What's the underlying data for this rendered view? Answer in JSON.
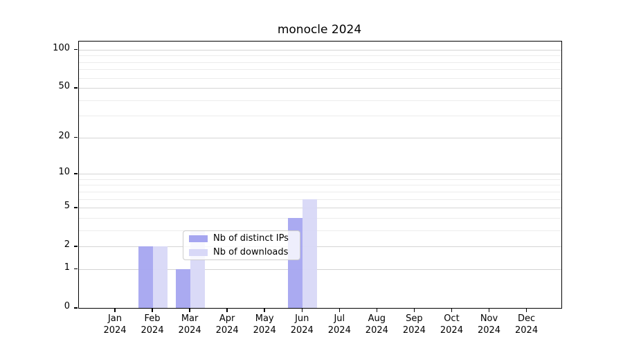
{
  "chart_data": {
    "type": "bar",
    "title": "monocle 2024",
    "categories": [
      "Jan",
      "Feb",
      "Mar",
      "Apr",
      "May",
      "Jun",
      "Jul",
      "Aug",
      "Sep",
      "Oct",
      "Nov",
      "Dec"
    ],
    "category_year": "2024",
    "series": [
      {
        "name": "Nb of distinct IPs",
        "color": "#a5a5f0",
        "values": [
          0,
          2,
          1,
          0,
          0,
          4,
          0,
          0,
          0,
          0,
          0,
          0
        ]
      },
      {
        "name": "Nb of downloads",
        "color": "#d8d8f7",
        "values": [
          0,
          2,
          3,
          0,
          0,
          6,
          0,
          0,
          0,
          0,
          0,
          0
        ]
      }
    ],
    "xlabel": "",
    "ylabel": "",
    "y_scale": "log1p",
    "y_ticks": [
      0,
      1,
      2,
      5,
      10,
      20,
      50,
      100
    ],
    "y_minor_gridlines": [
      3,
      4,
      6,
      7,
      8,
      9,
      30,
      40,
      60,
      70,
      80,
      90
    ],
    "ylim": [
      0,
      117
    ],
    "grid": true,
    "legend_position": "lower center",
    "colors": {
      "major_grid": "#d4d4d4",
      "minor_grid": "#ececec",
      "axis": "#000000",
      "legend_border": "#cccccc"
    }
  }
}
